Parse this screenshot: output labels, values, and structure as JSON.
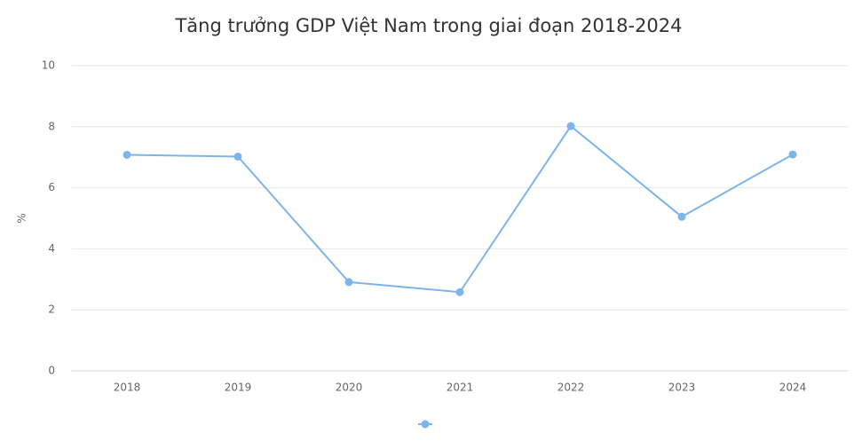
{
  "chart_data": {
    "type": "line",
    "title": "Tăng trưởng GDP Việt Nam trong giai đoạn 2018-2024",
    "y_label": "%",
    "categories": [
      "2018",
      "2019",
      "2020",
      "2021",
      "2022",
      "2023",
      "2024"
    ],
    "series": [
      {
        "color": "#7cb5ec",
        "values": [
          7.08,
          7.02,
          2.91,
          2.58,
          8.02,
          5.05,
          7.09
        ]
      }
    ],
    "ylim": [
      0,
      10
    ],
    "yticks": [
      0,
      2,
      4,
      6,
      8,
      10
    ],
    "grid": true
  }
}
